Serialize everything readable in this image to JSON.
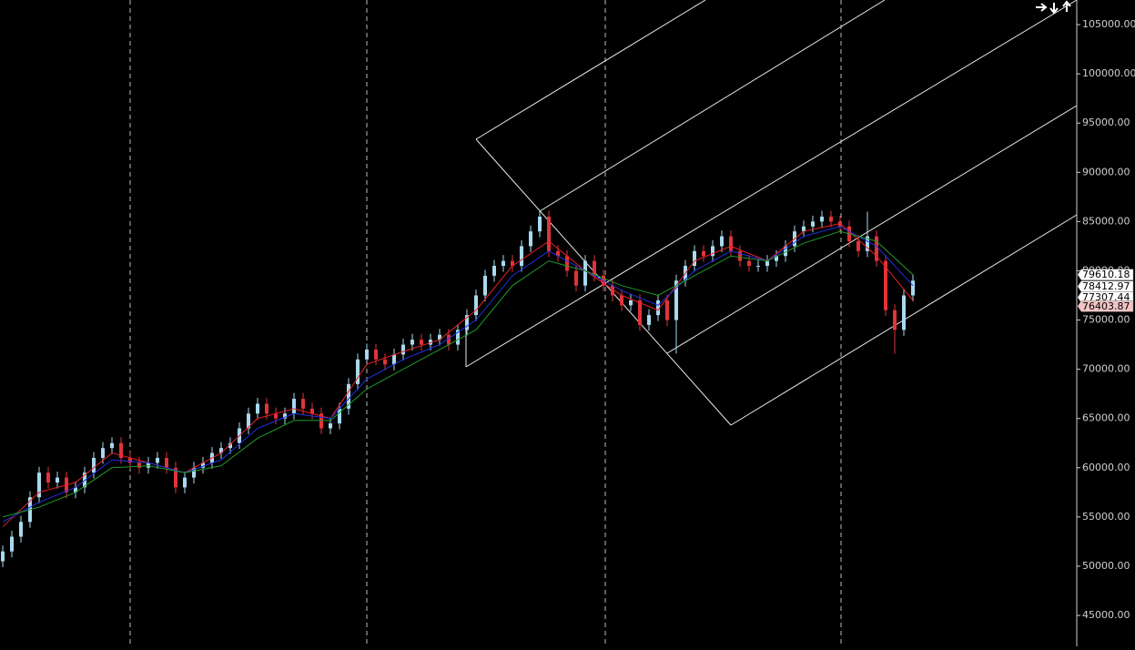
{
  "chart_data": {
    "type": "candlestick",
    "ylim": [
      41860,
      107500
    ],
    "yticks": [
      {
        "value": 45000,
        "label": "45000.00"
      },
      {
        "value": 50000,
        "label": "50000.00"
      },
      {
        "value": 55000,
        "label": "55000.00"
      },
      {
        "value": 60000,
        "label": "60000.00"
      },
      {
        "value": 65000,
        "label": "65000.00"
      },
      {
        "value": 70000,
        "label": "70000.00"
      },
      {
        "value": 75000,
        "label": "75000.00"
      },
      {
        "value": 80000,
        "label": "80000.00"
      },
      {
        "value": 85000,
        "label": "85000.00"
      },
      {
        "value": 90000,
        "label": "90000.00"
      },
      {
        "value": 95000,
        "label": "95000.00"
      },
      {
        "value": 100000,
        "label": "100000.00"
      },
      {
        "value": 105000,
        "label": "105000.00"
      }
    ],
    "up_color": "#a9d9ee",
    "down_color": "#e0343a",
    "open": [
      50500,
      51500,
      53000,
      54500,
      57000,
      59500,
      58500,
      59000,
      57500,
      58000,
      59500,
      61000,
      62000,
      62500,
      61000,
      60500,
      60000,
      60500,
      61000,
      60000,
      58000,
      59000,
      60000,
      60500,
      61500,
      62000,
      62500,
      64000,
      65500,
      66500,
      65500,
      65000,
      65500,
      67000,
      66000,
      65500,
      64000,
      64500,
      66000,
      68500,
      71000,
      72000,
      71000,
      70500,
      71500,
      72500,
      73000,
      72500,
      73000,
      73500,
      72500,
      74000,
      75500,
      77500,
      79500,
      80500,
      81000,
      80500,
      82500,
      84000,
      85500,
      82000,
      81500,
      80000,
      78500,
      81000,
      79500,
      78500,
      77500,
      76500,
      77000,
      74500,
      75500,
      77000,
      75000,
      79000,
      80500,
      82000,
      81500,
      82500,
      83500,
      82000,
      81000,
      80500,
      80500,
      81000,
      81500,
      82500,
      84000,
      84500,
      85000,
      85500,
      85000,
      84500,
      83000,
      82000,
      83500,
      81000,
      76000,
      74000,
      77500
    ],
    "high": [
      52100,
      53600,
      55100,
      57600,
      60100,
      60100,
      59600,
      59600,
      58600,
      60100,
      61600,
      62600,
      63100,
      63100,
      61600,
      61100,
      61100,
      61600,
      61600,
      60600,
      59600,
      60600,
      61100,
      62100,
      62600,
      63100,
      64600,
      66100,
      67100,
      67100,
      66100,
      66100,
      67600,
      67600,
      66600,
      66100,
      65100,
      66600,
      69100,
      71600,
      72600,
      72600,
      71600,
      72100,
      73100,
      73600,
      73600,
      73600,
      74100,
      74100,
      74600,
      76100,
      78100,
      80100,
      81100,
      81600,
      81600,
      83100,
      84600,
      86100,
      86100,
      82600,
      82100,
      80600,
      81600,
      81600,
      80100,
      79100,
      78100,
      77600,
      77600,
      76100,
      77600,
      77600,
      79600,
      81100,
      82600,
      82600,
      83100,
      84100,
      84100,
      82600,
      81600,
      81100,
      81600,
      82100,
      83100,
      84600,
      85100,
      85600,
      86100,
      86100,
      85600,
      85100,
      83600,
      86000,
      84100,
      81600,
      76600,
      78100,
      79600
    ],
    "low": [
      49900,
      50900,
      52400,
      53900,
      56400,
      57900,
      57900,
      56900,
      56900,
      57400,
      58900,
      60400,
      61400,
      60400,
      59900,
      59400,
      59400,
      59900,
      59400,
      57400,
      57400,
      58400,
      59400,
      59900,
      60900,
      61400,
      61900,
      63400,
      64900,
      64900,
      64400,
      64400,
      64900,
      65400,
      64900,
      63400,
      63400,
      63900,
      65400,
      67900,
      70400,
      70400,
      69900,
      69900,
      70900,
      71900,
      71900,
      71900,
      72400,
      71900,
      71900,
      73400,
      74900,
      76900,
      78900,
      79900,
      79900,
      79900,
      81900,
      83400,
      81400,
      80900,
      79400,
      77900,
      77900,
      78900,
      77900,
      76900,
      75900,
      75900,
      73900,
      73900,
      74900,
      74400,
      71600,
      78400,
      79900,
      80900,
      80900,
      81900,
      81400,
      80400,
      79900,
      79900,
      79900,
      80400,
      80900,
      81900,
      83400,
      83900,
      84400,
      84400,
      83900,
      82400,
      81400,
      81400,
      80400,
      75400,
      71600,
      73400,
      76900
    ],
    "close": [
      51500,
      53000,
      54500,
      57000,
      59500,
      58500,
      59000,
      57500,
      58000,
      59500,
      61000,
      62000,
      62500,
      61000,
      60500,
      60000,
      60500,
      61000,
      60000,
      58000,
      59000,
      60000,
      60500,
      61500,
      62000,
      62500,
      64000,
      65500,
      66500,
      65500,
      65000,
      65500,
      67000,
      66000,
      65500,
      64000,
      64500,
      66000,
      68500,
      71000,
      72000,
      71000,
      70500,
      71500,
      72500,
      73000,
      72500,
      73000,
      73500,
      72500,
      74000,
      75500,
      77500,
      79500,
      80500,
      81000,
      80500,
      82500,
      84000,
      85500,
      82000,
      81500,
      80000,
      78500,
      81000,
      79500,
      78500,
      77500,
      76500,
      77000,
      74500,
      75500,
      77000,
      75000,
      79000,
      80500,
      82000,
      81500,
      82500,
      83500,
      82000,
      81000,
      80500,
      80500,
      81000,
      81500,
      82500,
      84000,
      84500,
      85000,
      85500,
      85000,
      84500,
      83000,
      82000,
      83500,
      81000,
      76000,
      74000,
      77500,
      79000
    ],
    "lines": [
      {
        "color": "#e8202a",
        "x": [
          0,
          4,
          8,
          12,
          16,
          20,
          24,
          28,
          32,
          36,
          40,
          44,
          48,
          52,
          56,
          60,
          64,
          68,
          72,
          76,
          80,
          84,
          88,
          92,
          96,
          100
        ],
        "values": [
          54000,
          57500,
          58500,
          61500,
          60500,
          59500,
          61500,
          65000,
          66000,
          65000,
          70500,
          71800,
          73000,
          76000,
          80500,
          83000,
          80000,
          77500,
          76000,
          81000,
          82500,
          81000,
          84000,
          84800,
          81500,
          77000
        ]
      },
      {
        "color": "#2030e0",
        "x": [
          0,
          4,
          8,
          12,
          16,
          20,
          24,
          28,
          32,
          36,
          40,
          44,
          48,
          52,
          56,
          60,
          64,
          68,
          72,
          76,
          80,
          84,
          88,
          92,
          96,
          100
        ],
        "values": [
          54500,
          56500,
          58000,
          60800,
          60500,
          59500,
          60800,
          64000,
          65500,
          65000,
          69000,
          71000,
          72500,
          75000,
          79500,
          82000,
          80000,
          78000,
          76500,
          80000,
          82000,
          81000,
          83500,
          84500,
          82500,
          78500
        ]
      },
      {
        "color": "#1e9a2a",
        "x": [
          0,
          4,
          8,
          12,
          16,
          20,
          24,
          28,
          32,
          36,
          40,
          44,
          48,
          52,
          56,
          60,
          64,
          68,
          72,
          76,
          80,
          84,
          88,
          92,
          96,
          100
        ],
        "values": [
          55000,
          56000,
          57500,
          60000,
          60200,
          59500,
          60200,
          63000,
          64800,
          64800,
          68000,
          70000,
          72000,
          74000,
          78500,
          81000,
          80000,
          78500,
          77500,
          79500,
          81500,
          81000,
          82800,
          84000,
          83000,
          79600
        ]
      }
    ],
    "price_tags": [
      79610.18,
      78412.97,
      77307.44,
      76403.87
    ],
    "tag_colors": [
      "#ffffff",
      "#ffffff",
      "#ffffff",
      "#f2c4c4"
    ]
  }
}
